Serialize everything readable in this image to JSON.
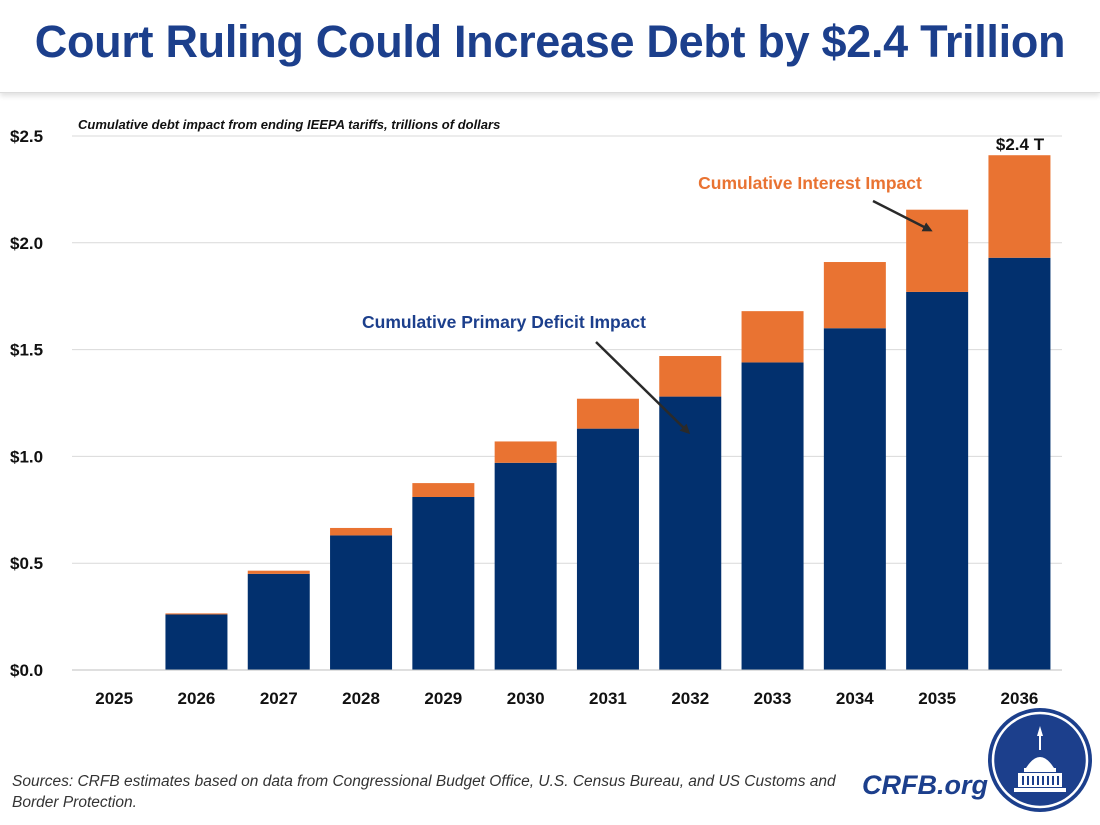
{
  "header": {
    "title": "Court Ruling Could Increase Debt by $2.4 Trillion"
  },
  "colors": {
    "primary": "#02306e",
    "interest": "#e97332",
    "title": "#1c3f8c",
    "grid": "#d9d9d9"
  },
  "chart_data": {
    "type": "bar",
    "stacked": true,
    "subtitle": "Cumulative debt impact from ending IEEPA tariffs, trillions of dollars",
    "categories": [
      "2025",
      "2026",
      "2027",
      "2028",
      "2029",
      "2030",
      "2031",
      "2032",
      "2033",
      "2034",
      "2035",
      "2036"
    ],
    "series": [
      {
        "name": "Cumulative Primary Deficit Impact",
        "color": "#02306e",
        "values": [
          0,
          0.26,
          0.45,
          0.63,
          0.81,
          0.97,
          1.13,
          1.28,
          1.44,
          1.6,
          1.77,
          1.93
        ]
      },
      {
        "name": "Cumulative Interest Impact",
        "color": "#e97332",
        "values": [
          0,
          0.005,
          0.015,
          0.035,
          0.065,
          0.1,
          0.14,
          0.19,
          0.24,
          0.31,
          0.385,
          0.48
        ]
      }
    ],
    "ylim": [
      0,
      2.5
    ],
    "yticks": [
      0,
      0.5,
      1.0,
      1.5,
      2.0,
      2.5
    ],
    "ytick_labels": [
      "$0.0",
      "$0.5",
      "$1.0",
      "$1.5",
      "$2.0",
      "$2.5"
    ],
    "grid": true,
    "annotations": {
      "total_label": "$2.4 T",
      "interest_label": "Cumulative Interest Impact",
      "primary_label": "Cumulative Primary Deficit Impact"
    }
  },
  "footer": {
    "sources": "Sources: CRFB estimates based on data from Congressional Budget Office, U.S. Census Bureau, and US Customs and Border Protection.",
    "site": "CRFB.org"
  }
}
